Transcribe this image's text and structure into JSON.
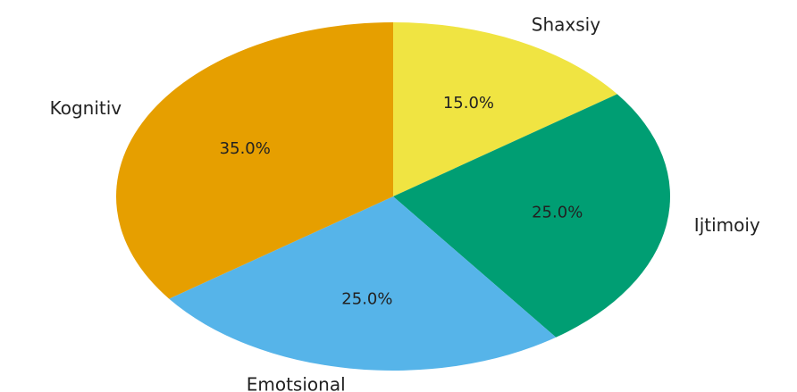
{
  "chart_data": {
    "type": "pie",
    "categories": [
      "Shaxsiy",
      "Ijtimoiy",
      "Emotsional",
      "Kognitiv"
    ],
    "values": [
      15,
      25,
      25,
      35
    ],
    "value_labels": [
      "15.0%",
      "25.0%",
      "25.0%",
      "35.0%"
    ],
    "colors": [
      "#f0e442",
      "#009e73",
      "#56b4e9",
      "#e69f00"
    ]
  }
}
